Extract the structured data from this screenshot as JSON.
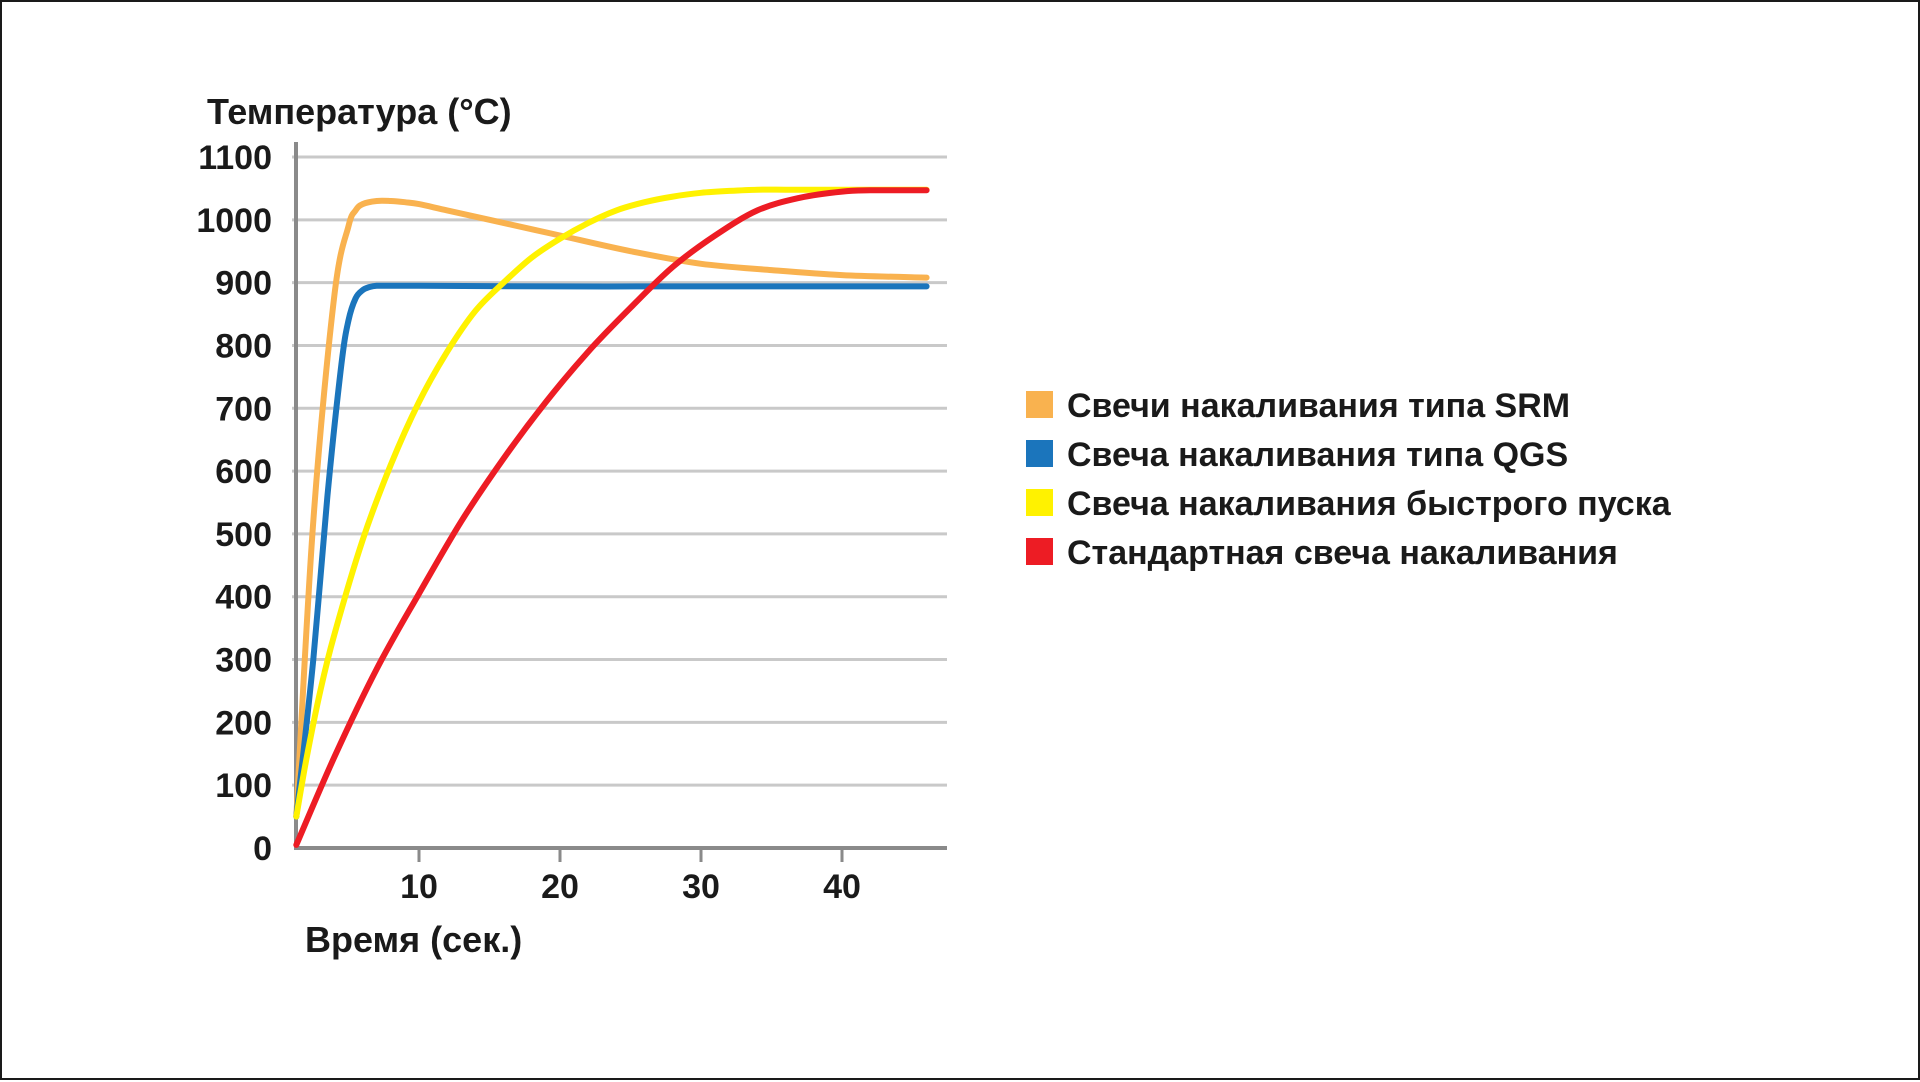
{
  "chart_data": {
    "type": "line",
    "title": "",
    "ylabel": "Температура (°С)",
    "xlabel": "Время (сек.)",
    "ylim": [
      0,
      1100
    ],
    "xlim": [
      0,
      47
    ],
    "yticks": [
      "0",
      "100",
      "200",
      "300",
      "400",
      "500",
      "600",
      "700",
      "800",
      "900",
      "1000",
      "1100"
    ],
    "xticks": [
      "10",
      "20",
      "30",
      "40"
    ],
    "grid": true,
    "legend_position": "right",
    "series": [
      {
        "name": "Свечи накаливания типа SRM",
        "color": "#F9B24F",
        "x": [
          1.3,
          2.5,
          4.0,
          5.0,
          5.5,
          6.0,
          7.0,
          8.0,
          9.0,
          10.0,
          12.0,
          15.0,
          20.0,
          25.0,
          30.0,
          35.0,
          40.0,
          46.0
        ],
        "y": [
          50,
          520,
          880,
          990,
          1015,
          1025,
          1030,
          1030,
          1028,
          1025,
          1015,
          1000,
          975,
          950,
          930,
          920,
          912,
          908
        ]
      },
      {
        "name": "Свеча накаливания типа QGS",
        "color": "#1B75BC",
        "x": [
          1.3,
          2.5,
          3.5,
          4.5,
          5.0,
          5.5,
          6.0,
          6.5,
          7.0,
          8.0,
          10.0,
          20.0,
          30.0,
          40.0,
          46.0
        ],
        "y": [
          50,
          300,
          560,
          770,
          840,
          875,
          888,
          893,
          895,
          895,
          895,
          894,
          894,
          894,
          894
        ]
      },
      {
        "name": "Свеча накаливания быстрого пуска",
        "color": "#FFF200",
        "x": [
          1.3,
          2.0,
          3.0,
          4.0,
          6.0,
          8.0,
          10.0,
          12.0,
          14.0,
          16.0,
          18.0,
          20.0,
          22.0,
          24.0,
          26.0,
          28.0,
          30.0,
          32.0,
          34.0,
          36.0,
          38.0,
          40.0,
          42.0,
          44.0,
          46.0
        ],
        "y": [
          50,
          140,
          250,
          340,
          490,
          610,
          710,
          790,
          855,
          900,
          940,
          970,
          995,
          1015,
          1028,
          1037,
          1043,
          1046,
          1048,
          1048,
          1048,
          1048,
          1048,
          1048,
          1048
        ]
      },
      {
        "name": "Стандартная свеча накаливания",
        "color": "#ED1C24",
        "x": [
          1.3,
          4.0,
          7.0,
          10.0,
          13.0,
          16.0,
          19.0,
          22.0,
          25.0,
          28.0,
          31.0,
          34.0,
          37.0,
          40.0,
          42.0,
          44.0,
          46.0
        ],
        "y": [
          5,
          145,
          285,
          405,
          520,
          620,
          710,
          790,
          860,
          925,
          975,
          1015,
          1035,
          1045,
          1047,
          1047,
          1047
        ]
      }
    ]
  }
}
